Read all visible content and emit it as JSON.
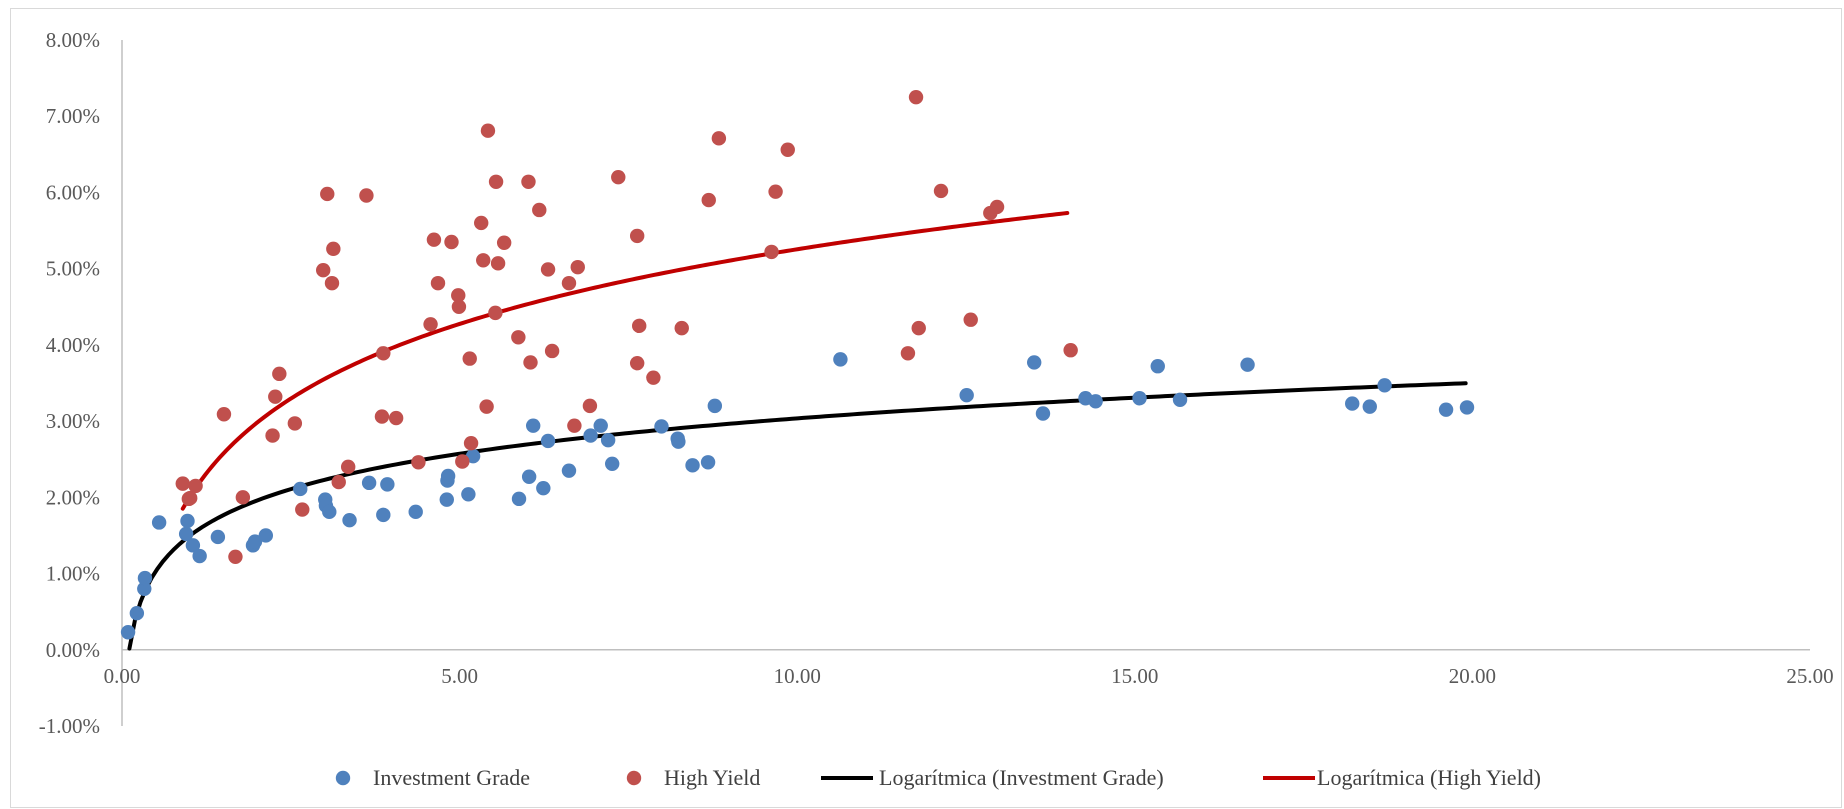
{
  "chart_data": {
    "type": "scatter",
    "title": "",
    "xlabel": "",
    "ylabel": "",
    "xlim": [
      0,
      25
    ],
    "ylim": [
      -0.01,
      0.08
    ],
    "x_ticks": [
      0,
      5,
      10,
      15,
      20,
      25
    ],
    "x_tick_labels": [
      "0.00",
      "5.00",
      "10.00",
      "15.00",
      "20.00",
      "25.00"
    ],
    "y_ticks": [
      -0.01,
      0,
      0.01,
      0.02,
      0.03,
      0.04,
      0.05,
      0.06,
      0.07,
      0.08
    ],
    "y_tick_labels": [
      "-1.00%",
      "0.00%",
      "1.00%",
      "2.00%",
      "3.00%",
      "4.00%",
      "5.00%",
      "6.00%",
      "7.00%",
      "8.00%"
    ],
    "grid": false,
    "legend_position": "bottom",
    "series": [
      {
        "name": "Investment Grade",
        "kind": "scatter",
        "color": "#4f81bd",
        "points": [
          [
            0.09,
            0.0023
          ],
          [
            0.22,
            0.0048
          ],
          [
            0.33,
            0.008
          ],
          [
            0.34,
            0.0094
          ],
          [
            0.55,
            0.0167
          ],
          [
            0.95,
            0.0152
          ],
          [
            0.97,
            0.0169
          ],
          [
            1.05,
            0.0137
          ],
          [
            1.15,
            0.0123
          ],
          [
            1.42,
            0.0148
          ],
          [
            1.94,
            0.0137
          ],
          [
            1.97,
            0.0142
          ],
          [
            2.13,
            0.015
          ],
          [
            2.64,
            0.0211
          ],
          [
            3.01,
            0.0197
          ],
          [
            3.02,
            0.0189
          ],
          [
            3.07,
            0.0181
          ],
          [
            3.37,
            0.017
          ],
          [
            3.66,
            0.0219
          ],
          [
            3.87,
            0.0177
          ],
          [
            3.93,
            0.0217
          ],
          [
            4.35,
            0.0181
          ],
          [
            4.81,
            0.0197
          ],
          [
            4.82,
            0.0222
          ],
          [
            4.83,
            0.0228
          ],
          [
            5.13,
            0.0204
          ],
          [
            5.2,
            0.0254
          ],
          [
            5.88,
            0.0198
          ],
          [
            6.03,
            0.0227
          ],
          [
            6.09,
            0.0294
          ],
          [
            6.24,
            0.0212
          ],
          [
            6.31,
            0.0274
          ],
          [
            6.62,
            0.0235
          ],
          [
            6.94,
            0.0281
          ],
          [
            7.09,
            0.0294
          ],
          [
            7.2,
            0.0275
          ],
          [
            7.26,
            0.0244
          ],
          [
            7.99,
            0.0293
          ],
          [
            8.23,
            0.0277
          ],
          [
            8.24,
            0.0273
          ],
          [
            8.45,
            0.0242
          ],
          [
            8.68,
            0.0246
          ],
          [
            8.78,
            0.032
          ],
          [
            10.64,
            0.0381
          ],
          [
            12.51,
            0.0334
          ],
          [
            13.51,
            0.0377
          ],
          [
            13.64,
            0.031
          ],
          [
            14.27,
            0.033
          ],
          [
            14.42,
            0.0326
          ],
          [
            15.07,
            0.033
          ],
          [
            15.34,
            0.0372
          ],
          [
            15.67,
            0.0328
          ],
          [
            16.67,
            0.0374
          ],
          [
            18.22,
            0.0323
          ],
          [
            18.48,
            0.0319
          ],
          [
            18.7,
            0.0347
          ],
          [
            19.61,
            0.0315
          ],
          [
            19.92,
            0.0318
          ]
        ]
      },
      {
        "name": "High Yield",
        "kind": "scatter",
        "color": "#c0504d",
        "points": [
          [
            0.9,
            0.0218
          ],
          [
            0.99,
            0.0198
          ],
          [
            1.01,
            0.0199
          ],
          [
            1.09,
            0.0215
          ],
          [
            1.51,
            0.0309
          ],
          [
            1.68,
            0.0122
          ],
          [
            1.79,
            0.02
          ],
          [
            2.23,
            0.0281
          ],
          [
            2.27,
            0.0332
          ],
          [
            2.33,
            0.0362
          ],
          [
            2.56,
            0.0297
          ],
          [
            2.67,
            0.0184
          ],
          [
            2.98,
            0.0498
          ],
          [
            3.04,
            0.0598
          ],
          [
            3.11,
            0.0481
          ],
          [
            3.13,
            0.0526
          ],
          [
            3.21,
            0.022
          ],
          [
            3.35,
            0.024
          ],
          [
            3.62,
            0.0596
          ],
          [
            3.85,
            0.0306
          ],
          [
            3.87,
            0.0389
          ],
          [
            4.06,
            0.0304
          ],
          [
            4.39,
            0.0246
          ],
          [
            4.57,
            0.0427
          ],
          [
            4.62,
            0.0538
          ],
          [
            4.68,
            0.0481
          ],
          [
            4.88,
            0.0535
          ],
          [
            4.98,
            0.0465
          ],
          [
            4.99,
            0.045
          ],
          [
            5.04,
            0.0247
          ],
          [
            5.15,
            0.0382
          ],
          [
            5.17,
            0.0271
          ],
          [
            5.32,
            0.056
          ],
          [
            5.35,
            0.0511
          ],
          [
            5.4,
            0.0319
          ],
          [
            5.42,
            0.0681
          ],
          [
            5.53,
            0.0442
          ],
          [
            5.54,
            0.0614
          ],
          [
            5.57,
            0.0507
          ],
          [
            5.66,
            0.0534
          ],
          [
            5.87,
            0.041
          ],
          [
            6.02,
            0.0614
          ],
          [
            6.05,
            0.0377
          ],
          [
            6.18,
            0.0577
          ],
          [
            6.31,
            0.0499
          ],
          [
            6.37,
            0.0392
          ],
          [
            6.62,
            0.0481
          ],
          [
            6.7,
            0.0294
          ],
          [
            6.75,
            0.0502
          ],
          [
            6.93,
            0.032
          ],
          [
            7.35,
            0.062
          ],
          [
            7.63,
            0.0543
          ],
          [
            7.63,
            0.0376
          ],
          [
            7.66,
            0.0425
          ],
          [
            7.87,
            0.0357
          ],
          [
            8.29,
            0.0422
          ],
          [
            8.69,
            0.059
          ],
          [
            8.84,
            0.0671
          ],
          [
            9.62,
            0.0522
          ],
          [
            9.68,
            0.0601
          ],
          [
            9.86,
            0.0656
          ],
          [
            11.64,
            0.0389
          ],
          [
            11.76,
            0.0725
          ],
          [
            11.8,
            0.0422
          ],
          [
            12.13,
            0.0602
          ],
          [
            12.57,
            0.0433
          ],
          [
            12.86,
            0.0573
          ],
          [
            12.96,
            0.0581
          ],
          [
            14.05,
            0.0393
          ]
        ]
      },
      {
        "name": "Logarítmica (Investment Grade)",
        "kind": "trendline",
        "color": "#000000",
        "x_range": [
          0.11,
          19.9
        ],
        "anchors": [
          [
            0.5,
            0.0103
          ],
          [
            20.0,
            0.035
          ]
        ]
      },
      {
        "name": "Logarítmica (High Yield)",
        "kind": "trendline",
        "color": "#c00000",
        "x_range": [
          0.9,
          14.0
        ],
        "anchors": [
          [
            1.0,
            0.02
          ],
          [
            14.0,
            0.0573
          ]
        ]
      }
    ]
  }
}
